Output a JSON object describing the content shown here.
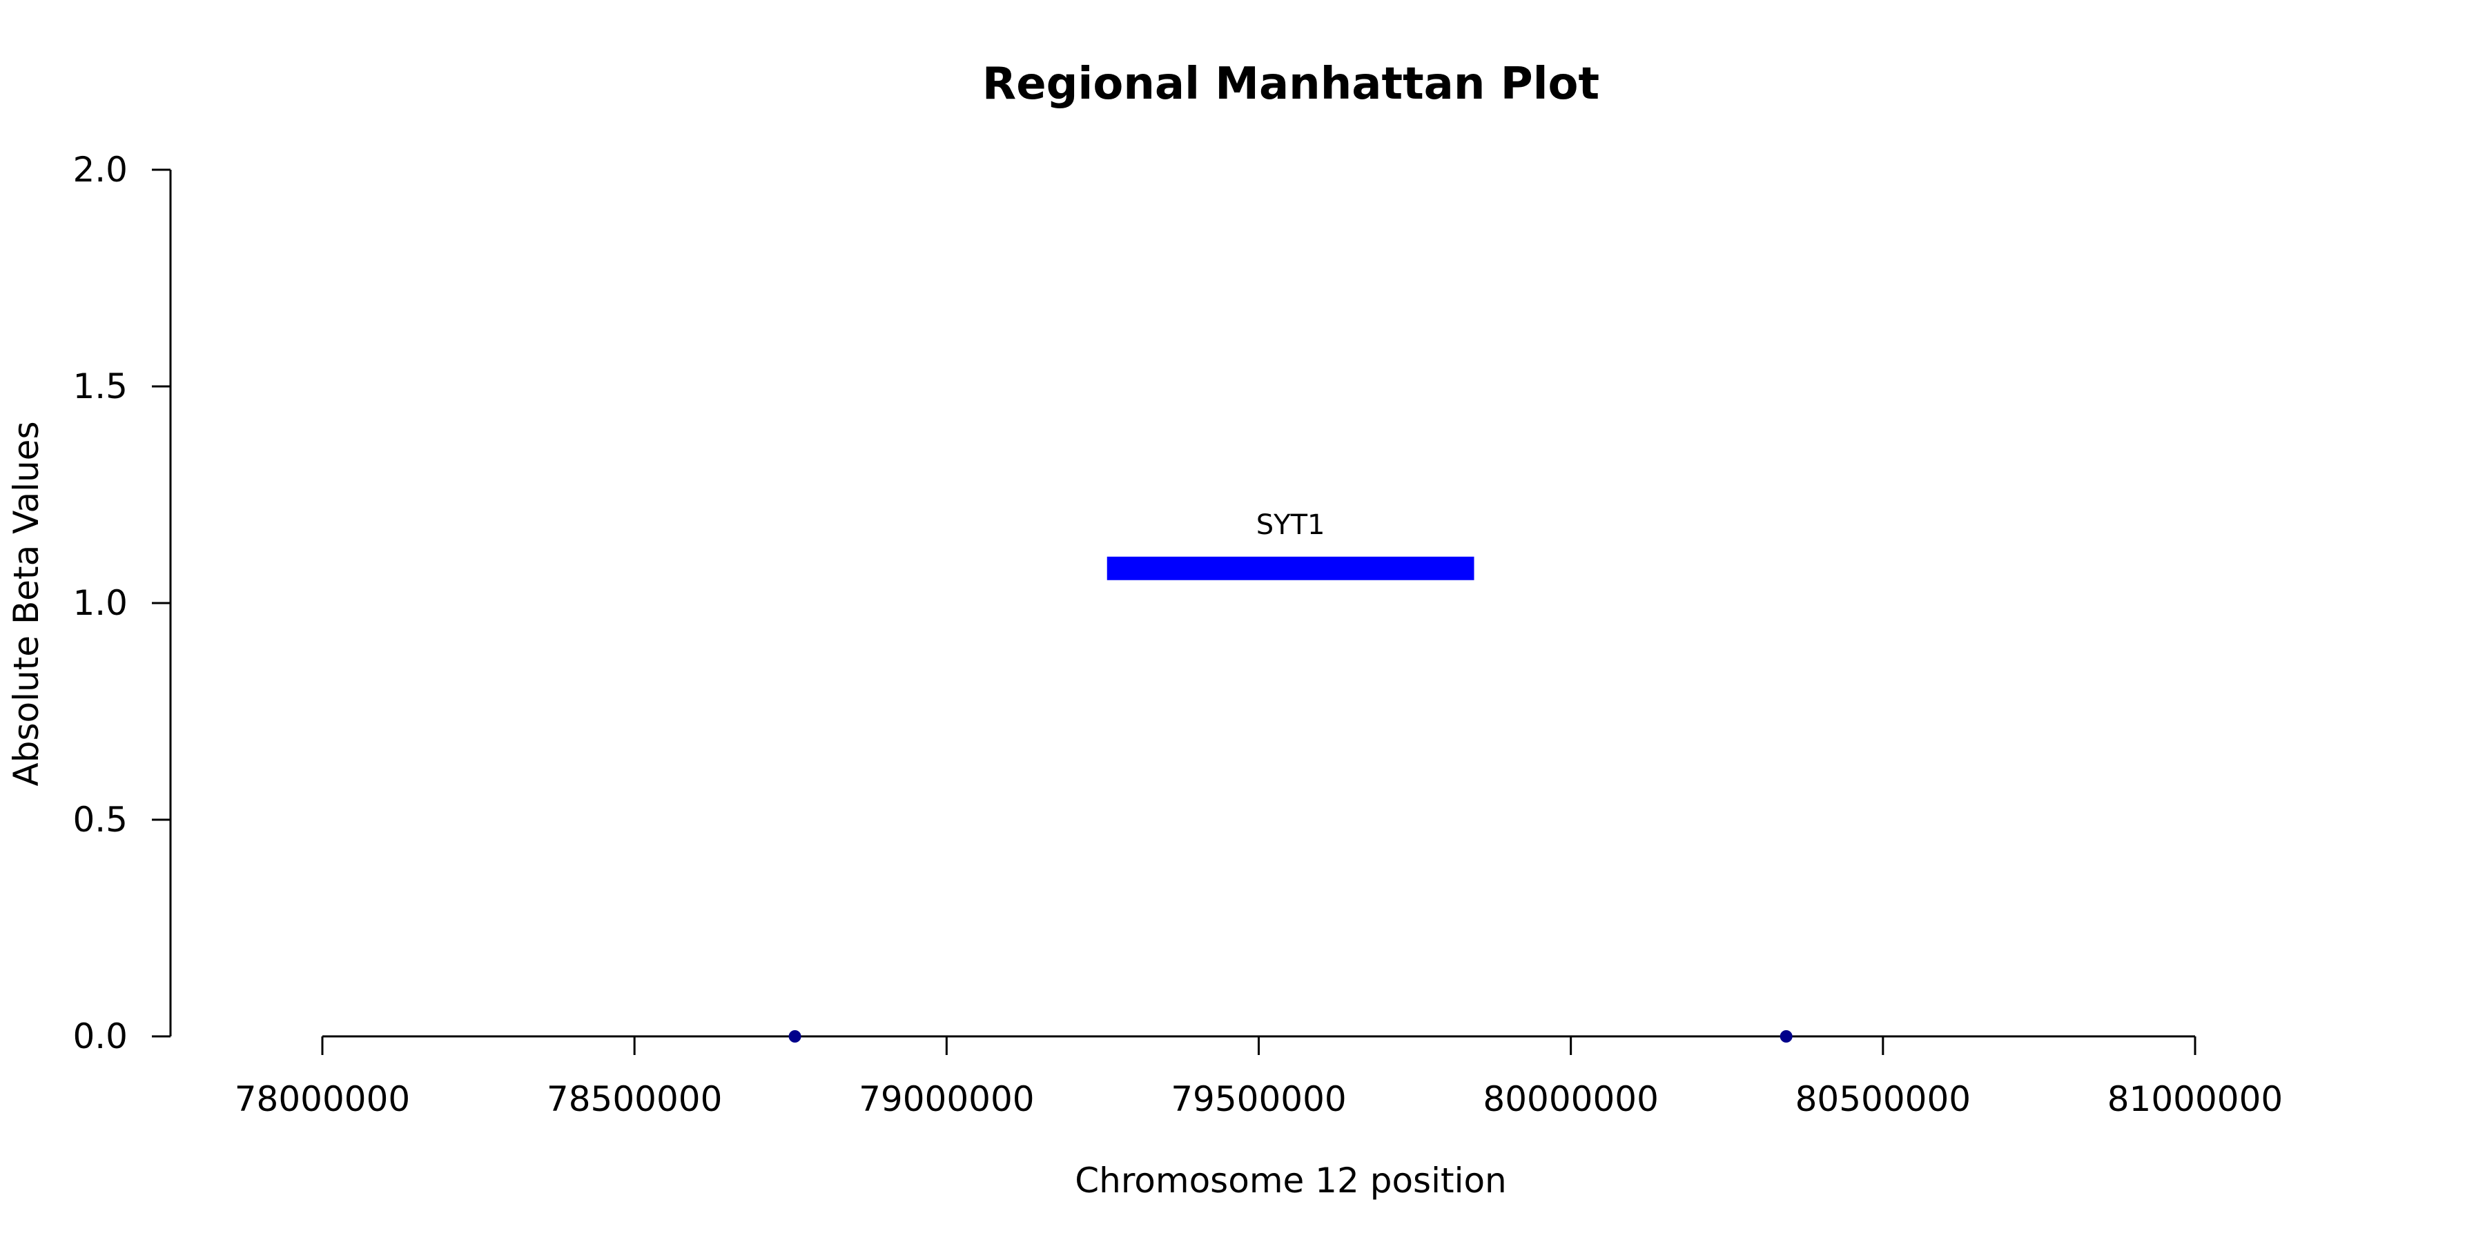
{
  "chart_data": {
    "type": "scatter",
    "title": "Regional Manhattan Plot",
    "xlabel": "Chromosome 12 position",
    "ylabel": "Absolute Beta Values",
    "xlim": [
      78000000,
      81000000
    ],
    "ylim": [
      0,
      2
    ],
    "x_ticks": [
      78000000,
      78500000,
      79000000,
      79500000,
      80000000,
      80500000,
      81000000
    ],
    "x_tick_labels": [
      "78000000",
      "78500000",
      "79000000",
      "79500000",
      "80000000",
      "80500000",
      "81000000"
    ],
    "y_ticks": [
      0,
      0.5,
      1,
      1.5,
      2
    ],
    "y_tick_labels": [
      "0.0",
      "0.5",
      "1.0",
      "1.5",
      "2.0"
    ],
    "points": [
      {
        "x": 78757000,
        "y": 0
      },
      {
        "x": 80345000,
        "y": 0
      }
    ],
    "point_color": "#00008B",
    "genes": [
      {
        "name": "SYT1",
        "start": 79257000,
        "end": 79845000,
        "y": 1.08,
        "color": "#0000FF"
      }
    ],
    "grid": false
  }
}
